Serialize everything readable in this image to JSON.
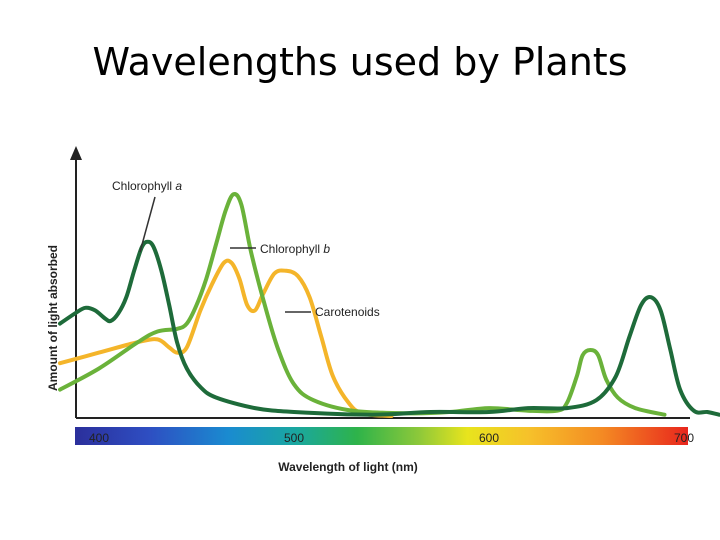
{
  "slide": {
    "title": "Wavelengths used by Plants"
  },
  "chart_data": {
    "type": "line",
    "xlabel": "Wavelength of light (nm)",
    "ylabel": "Amount of light absorbed",
    "xlim": [
      380,
      720
    ],
    "ylim": [
      0,
      1
    ],
    "xticks": [
      400,
      500,
      600,
      700
    ],
    "y_axis_ticks": false,
    "grid": false,
    "legend": "direct labels on curves",
    "spectrum_bar": true,
    "series": [
      {
        "name": "Chlorophyll a",
        "label_prefix": "Chlorophyll ",
        "label_italic": "a",
        "color": "#1e6b3a",
        "points": [
          [
            380,
            0.35
          ],
          [
            388,
            0.39
          ],
          [
            393,
            0.41
          ],
          [
            398,
            0.4
          ],
          [
            403,
            0.37
          ],
          [
            406,
            0.36
          ],
          [
            410,
            0.39
          ],
          [
            414,
            0.45
          ],
          [
            418,
            0.55
          ],
          [
            422,
            0.64
          ],
          [
            425,
            0.66
          ],
          [
            428,
            0.64
          ],
          [
            432,
            0.55
          ],
          [
            436,
            0.42
          ],
          [
            440,
            0.28
          ],
          [
            445,
            0.18
          ],
          [
            452,
            0.11
          ],
          [
            460,
            0.07
          ],
          [
            480,
            0.03
          ],
          [
            500,
            0.015
          ],
          [
            540,
            0.005
          ],
          [
            570,
            0.015
          ],
          [
            600,
            0.015
          ],
          [
            620,
            0.03
          ],
          [
            640,
            0.03
          ],
          [
            655,
            0.06
          ],
          [
            665,
            0.15
          ],
          [
            672,
            0.3
          ],
          [
            678,
            0.42
          ],
          [
            683,
            0.45
          ],
          [
            688,
            0.4
          ],
          [
            693,
            0.25
          ],
          [
            698,
            0.1
          ],
          [
            705,
            0.02
          ],
          [
            712,
            0.015
          ],
          [
            718,
            0.005
          ]
        ]
      },
      {
        "name": "Chlorophyll b",
        "label_prefix": "Chlorophyll ",
        "label_italic": "b",
        "color": "#6ab23a",
        "points": [
          [
            380,
            0.1
          ],
          [
            400,
            0.18
          ],
          [
            420,
            0.28
          ],
          [
            430,
            0.32
          ],
          [
            440,
            0.33
          ],
          [
            445,
            0.35
          ],
          [
            450,
            0.42
          ],
          [
            455,
            0.52
          ],
          [
            460,
            0.65
          ],
          [
            465,
            0.78
          ],
          [
            469,
            0.84
          ],
          [
            473,
            0.8
          ],
          [
            478,
            0.62
          ],
          [
            485,
            0.42
          ],
          [
            492,
            0.25
          ],
          [
            500,
            0.12
          ],
          [
            510,
            0.06
          ],
          [
            530,
            0.02
          ],
          [
            560,
            0.01
          ],
          [
            580,
            0.015
          ],
          [
            600,
            0.03
          ],
          [
            620,
            0.02
          ],
          [
            635,
            0.02
          ],
          [
            640,
            0.05
          ],
          [
            645,
            0.15
          ],
          [
            648,
            0.23
          ],
          [
            652,
            0.25
          ],
          [
            656,
            0.23
          ],
          [
            660,
            0.14
          ],
          [
            666,
            0.07
          ],
          [
            675,
            0.03
          ],
          [
            690,
            0.005
          ]
        ]
      },
      {
        "name": "Carotenoids",
        "color": "#f4b52a",
        "points": [
          [
            380,
            0.2
          ],
          [
            400,
            0.24
          ],
          [
            420,
            0.28
          ],
          [
            430,
            0.29
          ],
          [
            436,
            0.26
          ],
          [
            440,
            0.24
          ],
          [
            445,
            0.26
          ],
          [
            452,
            0.4
          ],
          [
            458,
            0.5
          ],
          [
            464,
            0.58
          ],
          [
            468,
            0.58
          ],
          [
            472,
            0.52
          ],
          [
            476,
            0.42
          ],
          [
            480,
            0.4
          ],
          [
            484,
            0.46
          ],
          [
            490,
            0.54
          ],
          [
            496,
            0.55
          ],
          [
            502,
            0.53
          ],
          [
            508,
            0.45
          ],
          [
            514,
            0.3
          ],
          [
            520,
            0.15
          ],
          [
            528,
            0.05
          ],
          [
            535,
            0.01
          ],
          [
            550,
            0
          ]
        ]
      }
    ]
  }
}
